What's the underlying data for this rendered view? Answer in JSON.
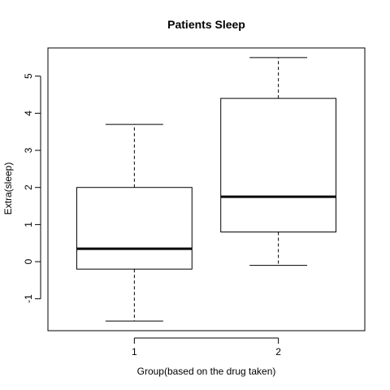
{
  "chart_data": {
    "type": "boxplot",
    "title": "Patients Sleep",
    "xlabel": "Group(based on the drug taken)",
    "ylabel": "Extra(sleep)",
    "categories": [
      "1",
      "2"
    ],
    "boxes": [
      {
        "category": "1",
        "whisker_low": -1.6,
        "q1": -0.2,
        "median": 0.35,
        "q3": 2.0,
        "whisker_high": 3.7
      },
      {
        "category": "2",
        "whisker_low": -0.1,
        "q1": 0.8,
        "median": 1.75,
        "q3": 4.4,
        "whisker_high": 5.5
      }
    ],
    "ylim": [
      -1.86,
      5.76
    ],
    "yticks": [
      -1,
      0,
      1,
      2,
      3,
      4,
      5
    ],
    "grid": false,
    "colors": {
      "box_fill": "#ffffff",
      "line": "#000000",
      "background": "#ffffff"
    }
  }
}
